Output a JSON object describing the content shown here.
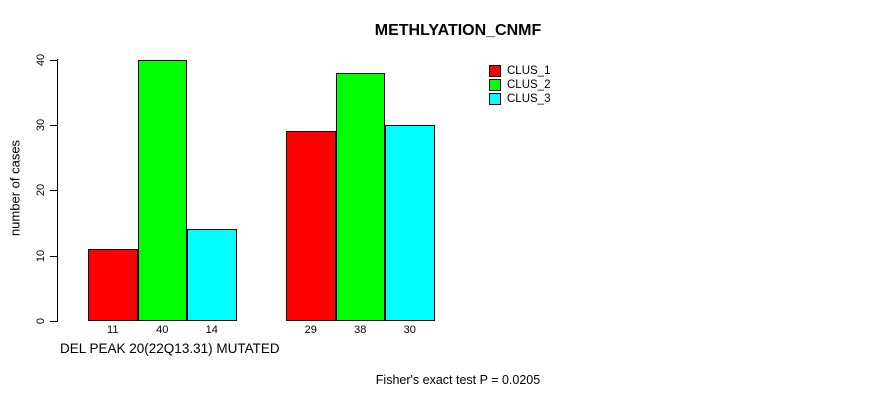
{
  "chart_data": {
    "type": "bar",
    "title": "METHLYATION_CNMF",
    "ylabel": "number of cases",
    "xlabel": "DEL PEAK 20(22Q13.31) MUTATED",
    "footnote": "Fisher's exact test P = 0.0205",
    "ylim": [
      0,
      40
    ],
    "yticks": [
      0,
      10,
      20,
      30,
      40
    ],
    "grid": false,
    "group_count": 2,
    "series": [
      {
        "name": "CLUS_1",
        "color": "#ff0000",
        "values": [
          11,
          29
        ]
      },
      {
        "name": "CLUS_2",
        "color": "#00ff00",
        "values": [
          40,
          38
        ]
      },
      {
        "name": "CLUS_3",
        "color": "#00ffff",
        "values": [
          14,
          30
        ]
      }
    ],
    "bar_value_labels": [
      [
        11,
        40,
        14
      ],
      [
        29,
        38,
        30
      ]
    ],
    "legend": {
      "position": "top-right",
      "entries": [
        "CLUS_1",
        "CLUS_2",
        "CLUS_3"
      ]
    }
  }
}
